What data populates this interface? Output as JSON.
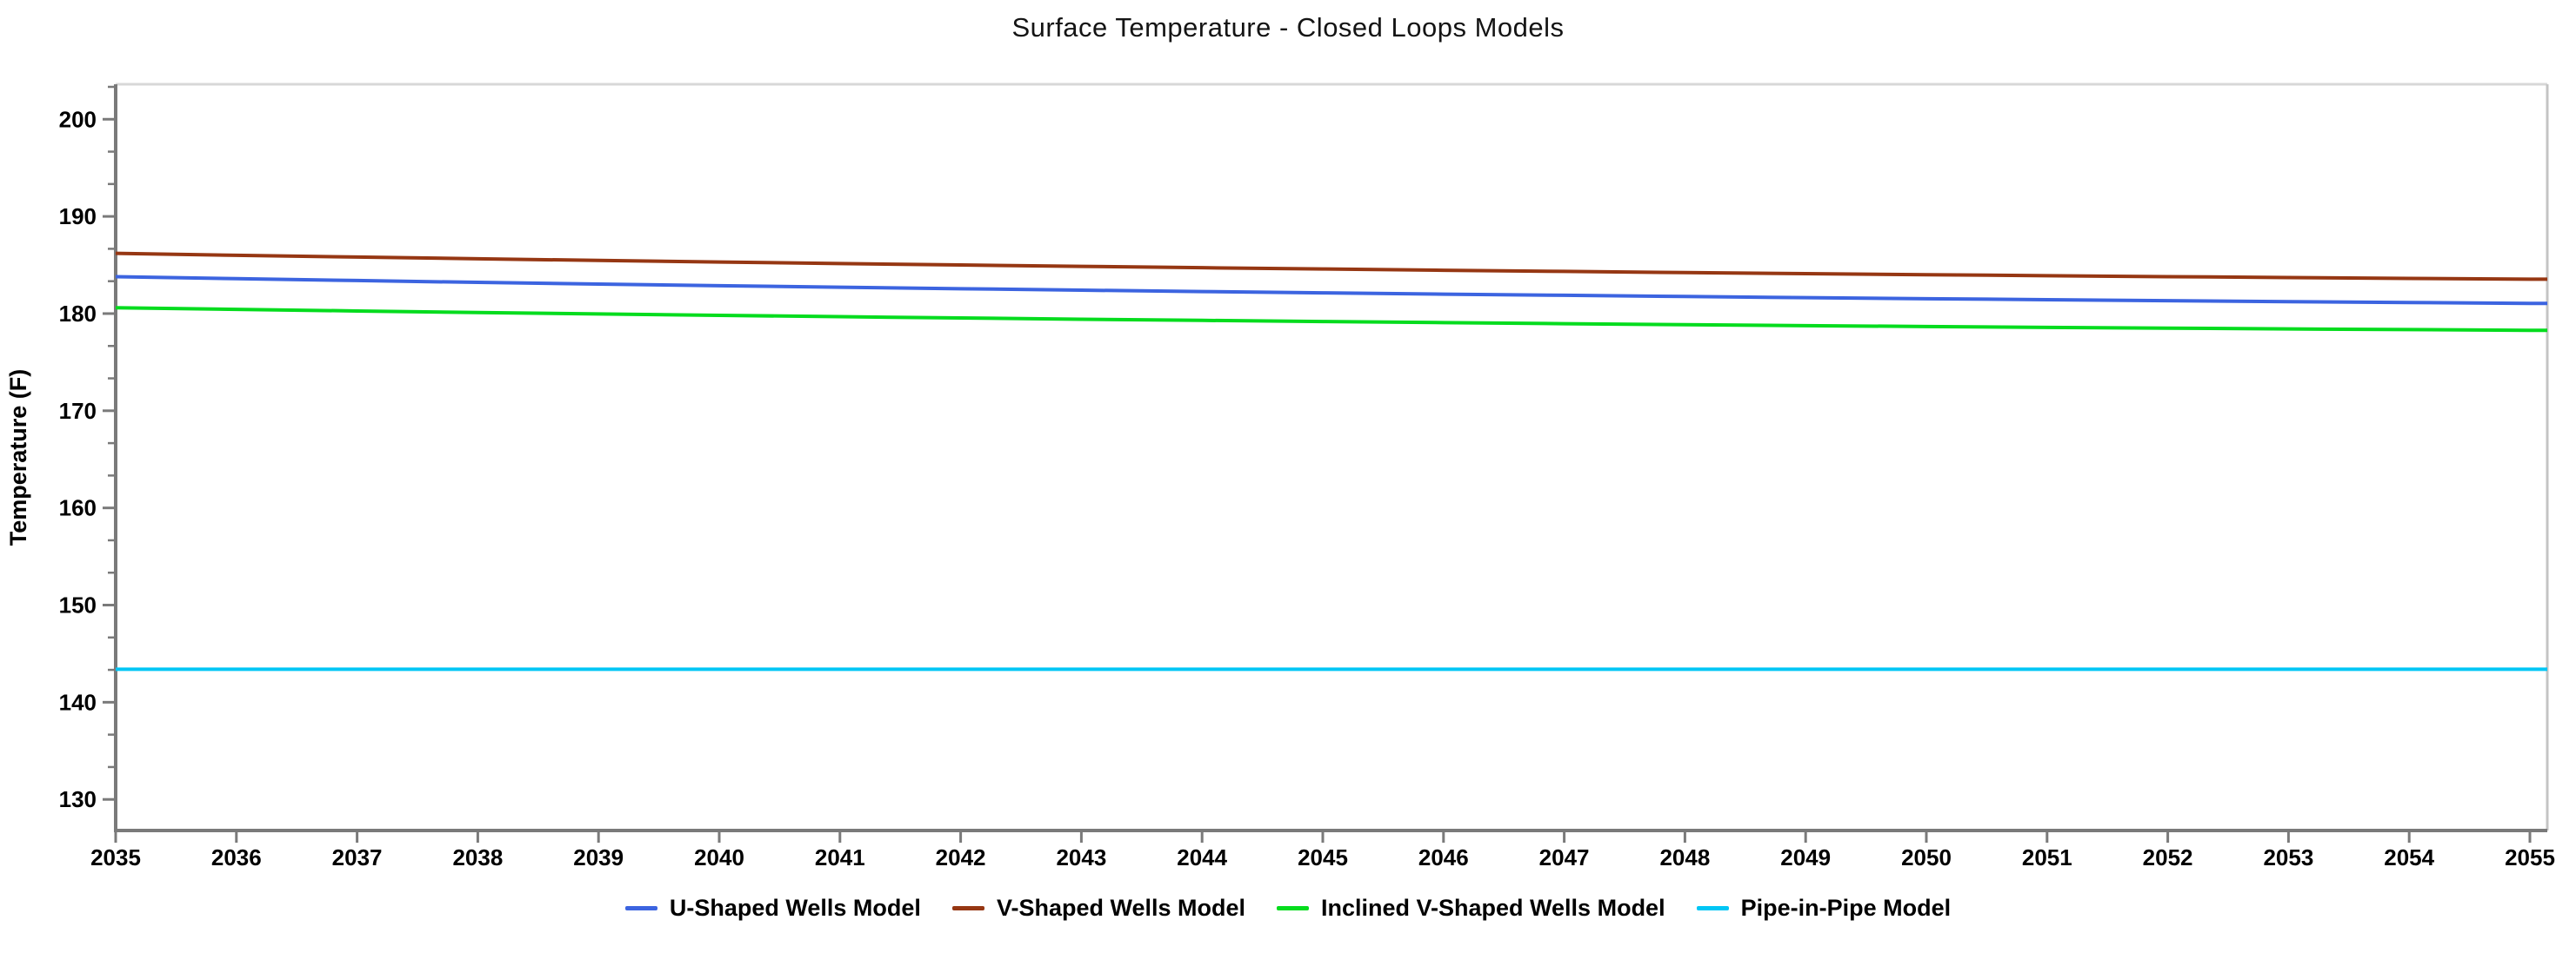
{
  "page": {
    "background": "#ffffff"
  },
  "style": {
    "axis_color": "#7A7A7A",
    "top_border_color": "#D8D8D8",
    "right_border_color": "#C4C4C4",
    "text_color": "#000000",
    "title_color": "#141414"
  },
  "chart_data": {
    "type": "line",
    "title": "Surface Temperature - Closed Loops Models",
    "xlabel": "",
    "ylabel": "Temperature (F)",
    "x": [
      2035,
      2036,
      2037,
      2038,
      2039,
      2040,
      2041,
      2042,
      2043,
      2044,
      2045,
      2046,
      2047,
      2048,
      2049,
      2050,
      2051,
      2052,
      2053,
      2054,
      2055
    ],
    "xlim": [
      2035,
      2055.14
    ],
    "ylim": [
      126.8,
      203.6
    ],
    "y_major_ticks": [
      130,
      140,
      150,
      160,
      170,
      180,
      190,
      200
    ],
    "y_minor_ticks_per_interval": 2,
    "grid": false,
    "legend_position": "bottom",
    "series": [
      {
        "name": "U-Shaped Wells Model",
        "color": "#3C64E0",
        "values": [
          183.8,
          183.59,
          183.4,
          183.21,
          183.04,
          182.87,
          182.71,
          182.56,
          182.41,
          182.27,
          182.13,
          182.0,
          181.88,
          181.76,
          181.64,
          181.53,
          181.43,
          181.33,
          181.23,
          181.14,
          181.05
        ]
      },
      {
        "name": "V-Shaped Wells Model",
        "color": "#963713",
        "values": [
          186.2,
          186.0,
          185.82,
          185.64,
          185.47,
          185.31,
          185.15,
          185.0,
          184.86,
          184.72,
          184.59,
          184.46,
          184.34,
          184.22,
          184.11,
          184.0,
          183.9,
          183.8,
          183.71,
          183.62,
          183.54
        ]
      },
      {
        "name": "Inclined V-Shaped Wells Model",
        "color": "#05DC1E",
        "values": [
          180.6,
          180.43,
          180.27,
          180.11,
          179.96,
          179.82,
          179.68,
          179.55,
          179.42,
          179.3,
          179.18,
          179.07,
          178.96,
          178.86,
          178.76,
          178.67,
          178.58,
          178.5,
          178.42,
          178.35,
          178.28
        ]
      },
      {
        "name": "Pipe-in-Pipe Model",
        "color": "#00C6F5",
        "values": [
          143.4,
          143.4,
          143.4,
          143.4,
          143.4,
          143.4,
          143.4,
          143.4,
          143.4,
          143.4,
          143.4,
          143.4,
          143.4,
          143.4,
          143.4,
          143.4,
          143.4,
          143.4,
          143.4,
          143.4,
          143.4
        ]
      }
    ]
  }
}
